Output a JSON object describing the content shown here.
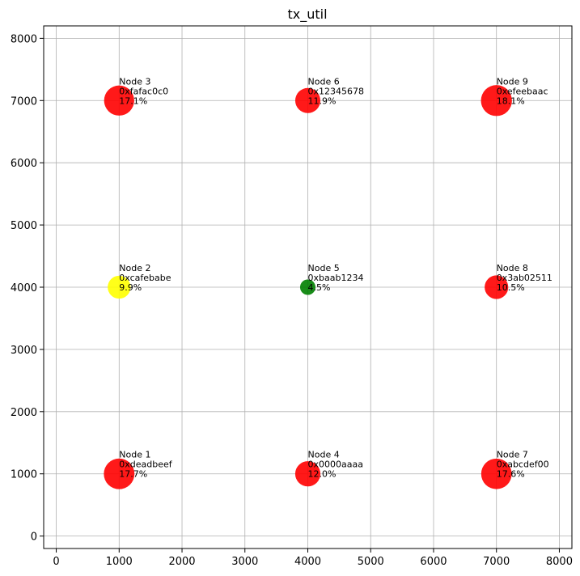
{
  "chart_data": {
    "type": "scatter",
    "title": "tx_util",
    "xlabel": "",
    "ylabel": "",
    "xlim": [
      -200,
      8200
    ],
    "ylim": [
      -200,
      8200
    ],
    "xticks": [
      0,
      1000,
      2000,
      3000,
      4000,
      5000,
      6000,
      7000,
      8000
    ],
    "yticks": [
      0,
      1000,
      2000,
      3000,
      4000,
      5000,
      6000,
      7000,
      8000
    ],
    "grid": true,
    "points": [
      {
        "label": "Node 1",
        "address": "0xdeadbeef",
        "util": "17.7%",
        "value": 17.7,
        "x": 1000,
        "y": 1000,
        "color": "#ff0000"
      },
      {
        "label": "Node 2",
        "address": "0xcafebabe",
        "util": "9.9%",
        "value": 9.9,
        "x": 1000,
        "y": 4000,
        "color": "#ffff00"
      },
      {
        "label": "Node 3",
        "address": "0xfafac0c0",
        "util": "17.1%",
        "value": 17.1,
        "x": 1000,
        "y": 7000,
        "color": "#ff0000"
      },
      {
        "label": "Node 4",
        "address": "0x0000aaaa",
        "util": "12.0%",
        "value": 12.0,
        "x": 4000,
        "y": 1000,
        "color": "#ff0000"
      },
      {
        "label": "Node 5",
        "address": "0xbaab1234",
        "util": "4.5%",
        "value": 4.5,
        "x": 4000,
        "y": 4000,
        "color": "#008000"
      },
      {
        "label": "Node 6",
        "address": "0x12345678",
        "util": "11.9%",
        "value": 11.9,
        "x": 4000,
        "y": 7000,
        "color": "#ff0000"
      },
      {
        "label": "Node 7",
        "address": "0xabcdef00",
        "util": "17.6%",
        "value": 17.6,
        "x": 7000,
        "y": 1000,
        "color": "#ff0000"
      },
      {
        "label": "Node 8",
        "address": "0x3ab02511",
        "util": "10.5%",
        "value": 10.5,
        "x": 7000,
        "y": 4000,
        "color": "#ff0000"
      },
      {
        "label": "Node 9",
        "address": "0xefeebaac",
        "util": "18.1%",
        "value": 18.1,
        "x": 7000,
        "y": 7000,
        "color": "#ff0000"
      }
    ]
  }
}
